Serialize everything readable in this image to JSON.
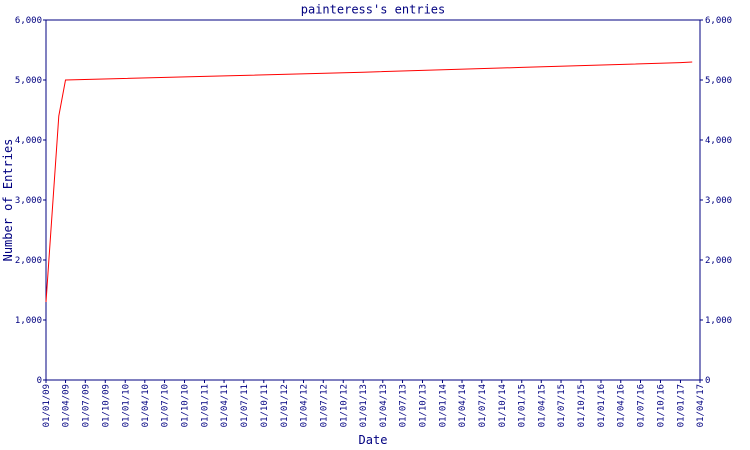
{
  "chart_data": {
    "type": "line",
    "title": "painteress's entries",
    "xlabel": "Date",
    "ylabel": "Number of Entries",
    "x": [
      "01/01/09",
      "01/03/09",
      "01/04/09",
      "01/01/11",
      "01/01/13",
      "01/01/15",
      "01/01/17",
      "24/02/17"
    ],
    "series": [
      {
        "name": "entries",
        "color": "#ff0000",
        "values": [
          1300,
          4400,
          5000,
          5060,
          5130,
          5210,
          5290,
          5300
        ]
      }
    ],
    "xlim": [
      "01/01/09",
      "01/04/17"
    ],
    "xticks": [
      "01/01/09",
      "01/04/09",
      "01/07/09",
      "01/10/09",
      "01/01/10",
      "01/04/10",
      "01/07/10",
      "01/10/10",
      "01/01/11",
      "01/04/11",
      "01/07/11",
      "01/10/11",
      "01/01/12",
      "01/04/12",
      "01/07/12",
      "01/10/12",
      "01/01/13",
      "01/04/13",
      "01/07/13",
      "01/10/13",
      "01/01/14",
      "01/04/14",
      "01/07/14",
      "01/10/14",
      "01/01/15",
      "01/04/15",
      "01/07/15",
      "01/10/15",
      "01/01/16",
      "01/04/16",
      "01/07/16",
      "01/10/16",
      "01/01/17",
      "01/04/17"
    ],
    "ylim": [
      0,
      6000
    ],
    "yticks": [
      0,
      {
        "value": 1000,
        "label": "1,000"
      },
      {
        "value": 2000,
        "label": "2,000"
      },
      {
        "value": 3000,
        "label": "3,000"
      },
      {
        "value": 4000,
        "label": "4,000"
      },
      {
        "value": 5000,
        "label": "5,000"
      },
      {
        "value": 6000,
        "label": "6,000"
      }
    ]
  }
}
